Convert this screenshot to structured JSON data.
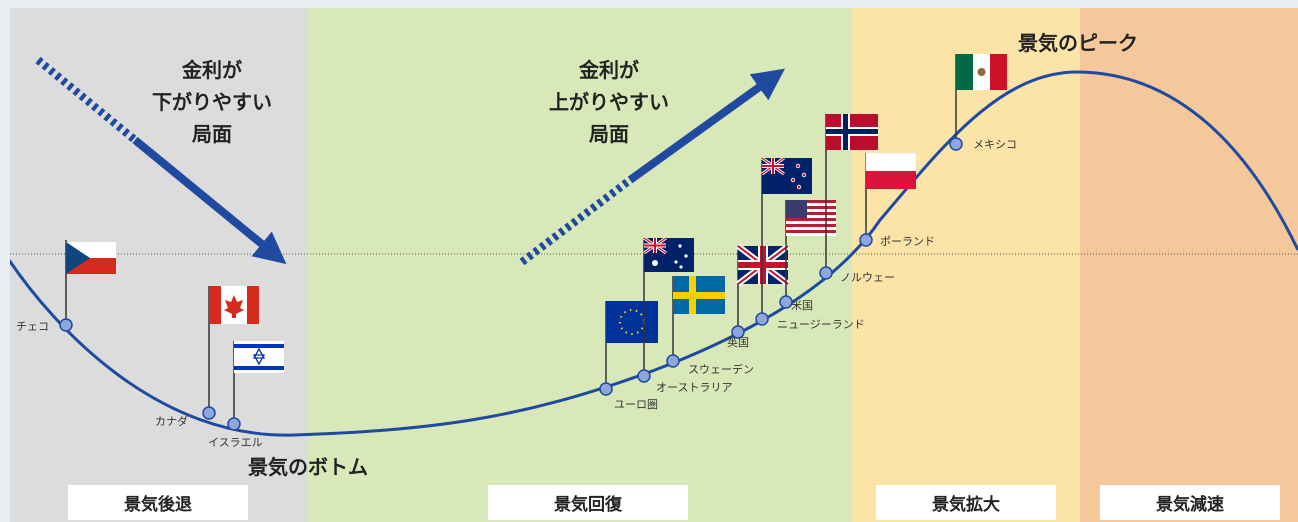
{
  "colors": {
    "recession": "#dcdcdc",
    "recovery": "#d8e8b8",
    "expansion": "#fbe4a8",
    "slowdown": "#f5c89c",
    "curve": "#1f4aa0",
    "arrow": "#1f4aa0",
    "marker": "#8fa6dc"
  },
  "phases": {
    "recession": "景気後退",
    "recovery": "景気回復",
    "expansion": "景気拡大",
    "slowdown": "景気減速"
  },
  "annotations": {
    "rates_down": [
      "金利が",
      "下がりやすい",
      "局面"
    ],
    "rates_up": [
      "金利が",
      "上がりやすい",
      "局面"
    ],
    "peak": "景気のピーク",
    "bottom": "景気のボトム"
  },
  "countries": [
    {
      "name": "チェコ",
      "flag": "czech-flag"
    },
    {
      "name": "カナダ",
      "flag": "canada-flag"
    },
    {
      "name": "イスラエル",
      "flag": "israel-flag"
    },
    {
      "name": "ユーロ圏",
      "flag": "eu-flag"
    },
    {
      "name": "オーストラリア",
      "flag": "australia-flag"
    },
    {
      "name": "スウェーデン",
      "flag": "sweden-flag"
    },
    {
      "name": "英国",
      "flag": "uk-flag"
    },
    {
      "name": "ニュージーランド",
      "flag": "new-zealand-flag"
    },
    {
      "name": "米国",
      "flag": "us-flag"
    },
    {
      "name": "ノルウェー",
      "flag": "norway-flag"
    },
    {
      "name": "ポーランド",
      "flag": "poland-flag"
    },
    {
      "name": "メキシコ",
      "flag": "mexico-flag"
    }
  ]
}
